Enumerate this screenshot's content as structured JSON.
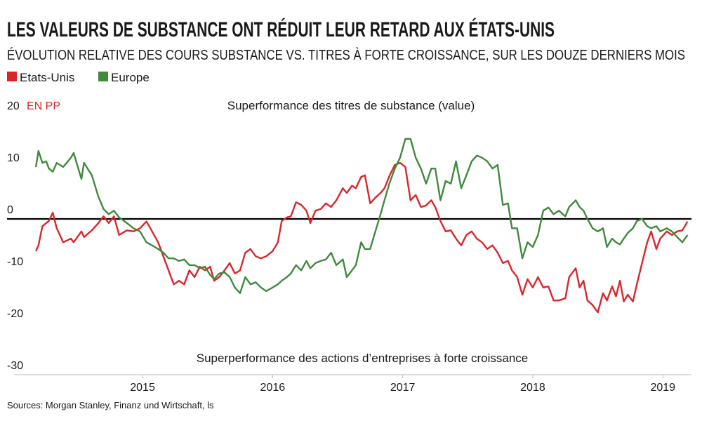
{
  "chart_data": {
    "type": "line",
    "title": "LES VALEURS DE SUBSTANCE ONT RÉDUIT LEUR RETARD AUX ÉTATS-UNIS",
    "subtitle": "ÉVOLUTION RELATIVE DES COURS SUBSTANCE VS. TITRES À FORTE CROISSANCE, SUR LES DOUZE DERNIERS MOIS",
    "y_unit": "EN PP",
    "annotations": [
      "Superformance des titres de substance (value)",
      "Superperformance des actions d’entreprises à forte croissance"
    ],
    "source": "Sources: Morgan Stanley, Finanz und Wirtschaft, ls",
    "x": [
      2014.18,
      2014.2,
      2014.23,
      2014.26,
      2014.28,
      2014.31,
      2014.34,
      2014.39,
      2014.45,
      2014.47,
      2014.53,
      2014.55,
      2014.61,
      2014.66,
      2014.7,
      2014.74,
      2014.78,
      2014.82,
      2014.88,
      2014.93,
      2014.98,
      2015.03,
      2015.06,
      2015.12,
      2015.16,
      2015.2,
      2015.24,
      2015.28,
      2015.32,
      2015.36,
      2015.4,
      2015.44,
      2015.48,
      2015.52,
      2015.55,
      2015.59,
      2015.63,
      2015.67,
      2015.71,
      2015.75,
      2015.79,
      2015.83,
      2015.87,
      2015.91,
      2015.95,
      2016.0,
      2016.04,
      2016.07,
      2016.11,
      2016.14,
      2016.18,
      2016.22,
      2016.26,
      2016.29,
      2016.33,
      2016.37,
      2016.41,
      2016.45,
      2016.49,
      2016.54,
      2016.57,
      2016.61,
      2016.64,
      2016.68,
      2016.71,
      2016.75,
      2016.79,
      2016.83,
      2016.86,
      2016.9,
      2016.94,
      2016.98,
      2017.02,
      2017.06,
      2017.1,
      2017.14,
      2017.18,
      2017.22,
      2017.25,
      2017.29,
      2017.33,
      2017.37,
      2017.41,
      2017.45,
      2017.49,
      2017.53,
      2017.57,
      2017.61,
      2017.65,
      2017.69,
      2017.73,
      2017.77,
      2017.81,
      2017.84,
      2017.88,
      2017.92,
      2017.96,
      2018.0,
      2018.04,
      2018.08,
      2018.12,
      2018.16,
      2018.2,
      2018.25,
      2018.28,
      2018.33,
      2018.36,
      2018.39,
      2018.42,
      2018.46,
      2018.5,
      2018.54,
      2018.57,
      2018.61,
      2018.64,
      2018.67,
      2018.7,
      2018.73,
      2018.77,
      2018.8,
      2018.84,
      2018.88,
      2018.91,
      2018.95,
      2018.98,
      2019.03,
      2019.07,
      2019.11,
      2019.15,
      2019.19
    ],
    "series": [
      {
        "name": "Etats-Unis",
        "color": "#d9262b",
        "values": [
          -6.2,
          -5.1,
          -1.4,
          -0.8,
          -0.4,
          1.2,
          -1.8,
          -4.5,
          -3.8,
          -4.5,
          -2.4,
          -3.5,
          -2.2,
          -0.8,
          0.5,
          -0.8,
          0.5,
          -3.1,
          -2.2,
          -2.4,
          -1.8,
          -0.5,
          -1.8,
          -4.5,
          -7.2,
          -9.9,
          -12.6,
          -11.9,
          -12.6,
          -9.9,
          -11.2,
          -9.2,
          -9.9,
          -9.2,
          -11.9,
          -11.2,
          -9.9,
          -8.5,
          -10.5,
          -9.9,
          -6.5,
          -5.8,
          -7.2,
          -7.6,
          -7.2,
          -6.2,
          -4.5,
          -0.4,
          0.3,
          0.5,
          3.2,
          2.7,
          1.6,
          -0.8,
          1.6,
          1.9,
          3.0,
          2.3,
          3.6,
          5.9,
          5.0,
          6.4,
          5.9,
          8.1,
          8.4,
          3.0,
          4.1,
          5.0,
          5.9,
          8.4,
          10.4,
          10.8,
          10.0,
          3.6,
          4.6,
          2.3,
          2.6,
          3.6,
          2.3,
          -0.4,
          -2.4,
          -2.2,
          -3.8,
          -5.1,
          -3.1,
          -2.4,
          -3.8,
          -4.5,
          -5.8,
          -5.1,
          -6.5,
          -8.5,
          -8.1,
          -9.9,
          -11.2,
          -14.6,
          -11.6,
          -13.2,
          -11.2,
          -13.2,
          -13.0,
          -15.7,
          -15.7,
          -15.3,
          -11.2,
          -9.5,
          -13.2,
          -11.9,
          -15.7,
          -16.6,
          -18.0,
          -14.3,
          -15.7,
          -13.0,
          -14.9,
          -11.9,
          -15.9,
          -14.6,
          -15.9,
          -12.6,
          -8.5,
          -4.5,
          -2.4,
          -5.8,
          -3.8,
          -2.4,
          -3.1,
          -2.4,
          -2.2,
          -0.5
        ]
      },
      {
        "name": "Europe",
        "color": "#3f8a3b",
        "values": [
          10.0,
          13.1,
          10.8,
          11.1,
          9.7,
          9.1,
          10.8,
          10.0,
          11.8,
          12.7,
          7.7,
          10.8,
          8.4,
          4.3,
          1.9,
          0.9,
          1.6,
          0.3,
          -0.8,
          -1.8,
          -2.4,
          -4.5,
          -4.9,
          -5.8,
          -6.5,
          -7.6,
          -7.6,
          -8.1,
          -7.8,
          -8.9,
          -8.9,
          -9.5,
          -9.2,
          -10.8,
          -11.6,
          -10.5,
          -10.3,
          -11.2,
          -13.2,
          -14.3,
          -11.2,
          -12.6,
          -12.2,
          -13.2,
          -13.9,
          -13.2,
          -12.6,
          -11.9,
          -11.2,
          -10.5,
          -8.9,
          -9.9,
          -8.1,
          -9.5,
          -8.5,
          -8.1,
          -7.8,
          -6.5,
          -8.9,
          -7.8,
          -11.2,
          -9.9,
          -8.9,
          -4.5,
          -5.8,
          -5.8,
          -2.4,
          0.9,
          3.6,
          7.0,
          9.7,
          11.8,
          15.4,
          15.4,
          11.8,
          9.7,
          6.8,
          9.7,
          9.7,
          3.6,
          7.3,
          6.8,
          11.1,
          5.9,
          8.4,
          11.1,
          12.2,
          11.8,
          11.1,
          9.7,
          10.4,
          2.7,
          3.0,
          -1.8,
          -1.8,
          -7.6,
          -4.5,
          -5.4,
          -3.1,
          1.6,
          2.2,
          0.9,
          1.6,
          0.5,
          2.3,
          3.6,
          2.3,
          1.6,
          0.0,
          -1.8,
          -2.4,
          -1.8,
          -5.4,
          -3.8,
          -4.5,
          -4.9,
          -3.8,
          -2.7,
          -1.8,
          -0.4,
          0.0,
          -1.4,
          -1.8,
          -1.4,
          -2.4,
          -1.8,
          -2.4,
          -3.5,
          -4.5,
          -3.1
        ]
      }
    ],
    "xlim": [
      2014.12,
      2019.22
    ],
    "xticks": [
      2015,
      2016,
      2017,
      2018,
      2019
    ],
    "ylim": [
      -30,
      20
    ],
    "yticks": [
      -30,
      -20,
      -10,
      0,
      10,
      20
    ],
    "zero_line": true
  }
}
